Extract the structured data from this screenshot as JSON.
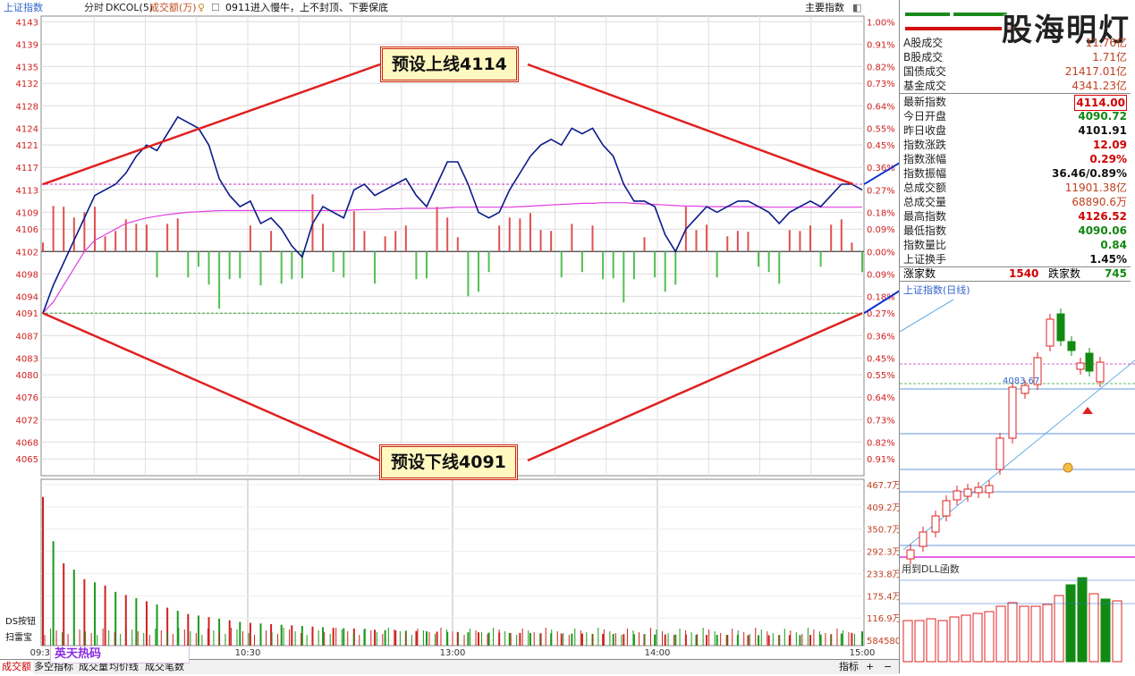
{
  "header": {
    "index_name": "上证指数",
    "mode": "分时",
    "indicator": "DKCOL(5)",
    "volume_label": "成交额(万)",
    "stock_tag": "0911进入慢牛，上不封顶、下要保底",
    "main_index_label": "主要指数"
  },
  "callouts": {
    "upper": "预设上线4114",
    "lower": "预设下线4091"
  },
  "watermark": "股海明灯",
  "chart_data": {
    "type": "line",
    "title": "上证指数 分时",
    "xlabel": "",
    "ylabel": "",
    "ylim": [
      4062,
      4144
    ],
    "prev_close": 4101.91,
    "y_ticks": [
      4143,
      4139,
      4135,
      4132,
      4128,
      4124,
      4121,
      4117,
      4113,
      4109,
      4106,
      4102,
      4098,
      4094,
      4091,
      4087,
      4083,
      4080,
      4076,
      4072,
      4068,
      4065
    ],
    "pct_ticks": [
      "1.00%",
      "0.91%",
      "0.82%",
      "0.73%",
      "0.64%",
      "0.55%",
      "0.45%",
      "0.36%",
      "0.27%",
      "0.18%",
      "0.09%",
      "0.00%",
      "0.09%",
      "0.18%",
      "0.27%",
      "0.36%",
      "0.45%",
      "0.55%",
      "0.64%",
      "0.73%",
      "0.82%",
      "0.91%"
    ],
    "x_labels": [
      "09:30",
      "10:30",
      "13:00",
      "14:00",
      "15:00"
    ],
    "price_series": [
      4091,
      4096,
      4100,
      4104,
      4108,
      4112,
      4113,
      4114,
      4116,
      4119,
      4121,
      4120,
      4123,
      4126,
      4125,
      4124,
      4121,
      4115,
      4112,
      4110,
      4111,
      4107,
      4108,
      4106,
      4103,
      4101,
      4107,
      4110,
      4109,
      4108,
      4113,
      4114,
      4112,
      4113,
      4114,
      4115,
      4112,
      4110,
      4114,
      4118,
      4118,
      4114,
      4109,
      4108,
      4109,
      4113,
      4116,
      4119,
      4121,
      4122,
      4121,
      4124,
      4123,
      4124,
      4121,
      4119,
      4114,
      4111,
      4111,
      4110,
      4105,
      4102,
      4106,
      4108,
      4110,
      4109,
      4110,
      4111,
      4111,
      4110,
      4109,
      4107,
      4109,
      4110,
      4111,
      4110,
      4112,
      4114,
      4114,
      4113
    ],
    "avg_series": [
      4091,
      4093,
      4096,
      4099,
      4102,
      4104,
      4105,
      4106,
      4107,
      4107.5,
      4108,
      4108.3,
      4108.6,
      4108.8,
      4109,
      4109.1,
      4109.2,
      4109.3,
      4109.3,
      4109.3,
      4109.3,
      4109.3,
      4109.3,
      4109.3,
      4109.3,
      4109.3,
      4109.3,
      4109.3,
      4109.3,
      4109.3,
      4109.4,
      4109.5,
      4109.5,
      4109.6,
      4109.6,
      4109.7,
      4109.7,
      4109.7,
      4109.7,
      4109.8,
      4109.9,
      4109.9,
      4109.9,
      4109.9,
      4109.9,
      4109.9,
      4110,
      4110.1,
      4110.2,
      4110.3,
      4110.4,
      4110.5,
      4110.6,
      4110.6,
      4110.7,
      4110.7,
      4110.7,
      4110.6,
      4110.5,
      4110.4,
      4110.3,
      4110.2,
      4110.1,
      4110.1,
      4110,
      4110,
      4110,
      4110,
      4110,
      4110,
      4109.9,
      4109.9,
      4109.9,
      4109.9,
      4109.9,
      4109.9,
      4109.9,
      4109.9,
      4109.9,
      4109.9
    ],
    "volume_ylim": [
      0,
      526
    ],
    "volume_ticks": [
      "467.7万",
      "409.2万",
      "350.7万",
      "292.3万",
      "233.8万",
      "175.4万",
      "116.9万",
      "584580"
    ],
    "volume_series": [
      470,
      330,
      260,
      240,
      210,
      200,
      190,
      170,
      160,
      150,
      140,
      130,
      120,
      110,
      100,
      95,
      90,
      85,
      80,
      75,
      72,
      70,
      68,
      66,
      64,
      62,
      60,
      58,
      56,
      55,
      54,
      52,
      50,
      49,
      48,
      47,
      46,
      45,
      44,
      43,
      43,
      42,
      42,
      41,
      41,
      40,
      40,
      40,
      39,
      39,
      38,
      38,
      38,
      37,
      37,
      37,
      36,
      36,
      36,
      35,
      35,
      35,
      35,
      34,
      34,
      34,
      34,
      34,
      33,
      33,
      33,
      33,
      33,
      33,
      34,
      35,
      36,
      38,
      40,
      45
    ]
  },
  "stats": {
    "a_turnover": {
      "label": "A股成交",
      "value": "11.76亿"
    },
    "b_turnover": {
      "label": "B股成交",
      "value": "1.71亿"
    },
    "bond_turnover": {
      "label": "国债成交",
      "value": "21417.01亿"
    },
    "fund_turnover": {
      "label": "基金成交",
      "value": "4341.23亿"
    },
    "latest": {
      "label": "最新指数",
      "value": "4114.00"
    },
    "open": {
      "label": "今日开盘",
      "value": "4090.72"
    },
    "prev_close": {
      "label": "昨日收盘",
      "value": "4101.91"
    },
    "change": {
      "label": "指数涨跌",
      "value": "12.09"
    },
    "change_pct": {
      "label": "指数涨幅",
      "value": "0.29%"
    },
    "amplitude": {
      "label": "指数振幅",
      "value": "36.46/0.89%"
    },
    "total_amount": {
      "label": "总成交额",
      "value": "11901.38亿"
    },
    "total_volume": {
      "label": "总成交量",
      "value": "68890.6万"
    },
    "high": {
      "label": "最高指数",
      "value": "4126.52"
    },
    "low": {
      "label": "最低指数",
      "value": "4090.06"
    },
    "vol_ratio": {
      "label": "指数量比",
      "value": "0.84"
    },
    "turnover_rate": {
      "label": "上证换手",
      "value": "1.45%"
    },
    "up_label": "涨家数",
    "up_count": "1540",
    "down_label": "跌家数",
    "down_count": "745"
  },
  "mini_chart": {
    "title": "上证指数(日线)",
    "price_tag": "4083.67",
    "dll_label": "用到DLL函数"
  },
  "bottom": {
    "left_tab": "成交额",
    "ds_button": "DS按钮",
    "scan_label": "扫雷宝",
    "brand": "英天热码",
    "right_tab": "指标",
    "tabs": [
      "多空指标",
      "成交量",
      "均价线",
      "成交笔数"
    ]
  }
}
